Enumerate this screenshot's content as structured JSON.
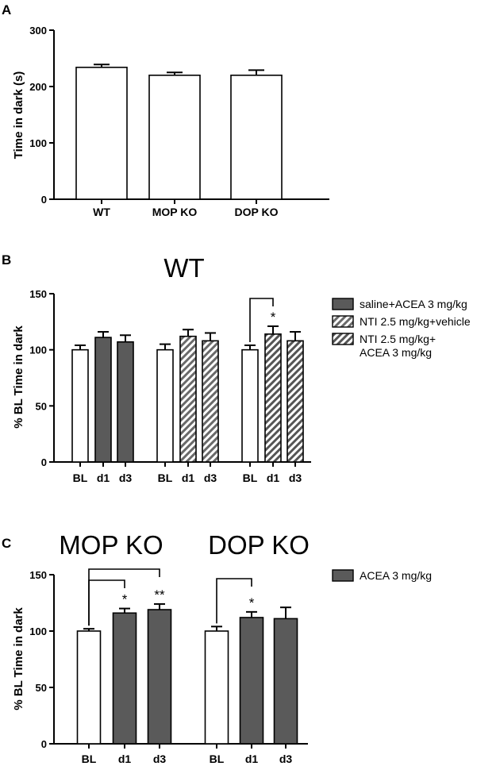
{
  "colors": {
    "filled": "#5a5a5a",
    "open": "#ffffff",
    "stroke": "#000000"
  },
  "chart_data": [
    {
      "panel": "A",
      "type": "bar",
      "title": "",
      "xlabel": "",
      "ylabel": "Time in dark (s)",
      "ylim": [
        0,
        300
      ],
      "yticks": [
        0,
        100,
        200,
        300
      ],
      "categories": [
        "WT",
        "MOP KO",
        "DOP KO"
      ],
      "values": [
        234,
        220,
        220
      ],
      "errors": [
        5,
        5,
        9
      ],
      "fills": [
        "open",
        "open",
        "open"
      ],
      "significance": []
    },
    {
      "panel": "B",
      "type": "bar",
      "title": "WT",
      "xlabel": "",
      "ylabel": "% BL Time in dark",
      "ylim": [
        0,
        150
      ],
      "yticks": [
        0,
        50,
        100,
        150
      ],
      "categories": [
        "BL",
        "d1",
        "d3",
        "BL",
        "d1",
        "d3",
        "BL",
        "d1",
        "d3"
      ],
      "values": [
        100,
        111,
        107,
        100,
        112,
        108,
        100,
        114,
        108
      ],
      "errors": [
        4,
        5,
        6,
        5,
        6,
        7,
        4,
        7,
        8
      ],
      "fills": [
        "open",
        "filled",
        "filled",
        "open",
        "hatch",
        "hatch",
        "open",
        "hatch2",
        "hatch2"
      ],
      "legend": [
        {
          "lines": [
            "saline+ACEA 3 mg/kg"
          ],
          "fill": "filled"
        },
        {
          "lines": [
            "NTI 2.5 mg/kg+vehicle"
          ],
          "fill": "hatch"
        },
        {
          "lines": [
            "NTI 2.5 mg/kg+",
            "ACEA 3 mg/kg"
          ],
          "fill": "hatch2"
        }
      ],
      "significance": [
        {
          "from": 6,
          "to": 7,
          "label": "*"
        }
      ]
    },
    {
      "panel": "C",
      "type": "bar",
      "titles": [
        "MOP KO",
        "DOP KO"
      ],
      "xlabel": "",
      "ylabel": "% BL Time in dark",
      "ylim": [
        0,
        150
      ],
      "yticks": [
        0,
        50,
        100,
        150
      ],
      "categories": [
        "BL",
        "d1",
        "d3",
        "BL",
        "d1",
        "d3"
      ],
      "values": [
        100,
        116,
        119,
        100,
        112,
        111
      ],
      "errors": [
        2,
        4,
        5,
        4,
        5,
        10
      ],
      "fills": [
        "open",
        "filled",
        "filled",
        "open",
        "filled",
        "filled"
      ],
      "legend": [
        {
          "lines": [
            "ACEA 3 mg/kg"
          ],
          "fill": "filled"
        }
      ],
      "significance": [
        {
          "from": 0,
          "to": 1,
          "label": "*"
        },
        {
          "from": 0,
          "to": 2,
          "label": "**"
        },
        {
          "from": 3,
          "to": 4,
          "label": "*"
        }
      ]
    }
  ]
}
